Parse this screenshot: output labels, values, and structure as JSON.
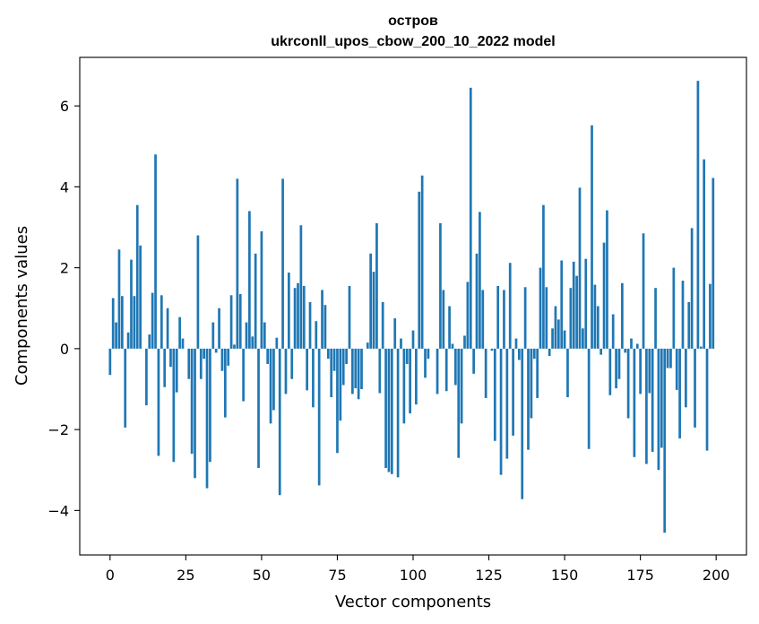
{
  "chart_data": {
    "type": "bar",
    "title": "остров",
    "subtitle": "ukrconll_upos_cbow_200_10_2022 model",
    "xlabel": "Vector components",
    "ylabel": "Components values",
    "xlim": [
      -10,
      210
    ],
    "ylim": [
      -5.1,
      7.2
    ],
    "xticks": [
      0,
      25,
      50,
      75,
      100,
      125,
      150,
      175,
      200
    ],
    "yticks": [
      -4,
      -2,
      0,
      2,
      4,
      6
    ],
    "ytick_labels": [
      "−4",
      "−2",
      "0",
      "2",
      "4",
      "6"
    ],
    "bar_color": "#1f77b4",
    "grid": false,
    "values": [
      -0.65,
      1.25,
      0.65,
      2.45,
      1.3,
      -1.95,
      0.4,
      2.2,
      1.3,
      3.55,
      2.55,
      0.0,
      -1.4,
      0.35,
      1.38,
      4.8,
      -2.65,
      1.32,
      -0.95,
      1.0,
      -0.45,
      -2.8,
      -1.08,
      0.78,
      0.25,
      0.0,
      -0.75,
      -2.6,
      -3.2,
      2.8,
      -0.75,
      -0.25,
      -3.45,
      -2.8,
      0.65,
      -0.1,
      1.0,
      -0.55,
      -1.7,
      -0.42,
      1.32,
      0.1,
      4.2,
      1.35,
      -1.3,
      0.65,
      3.4,
      0.3,
      2.35,
      -2.95,
      2.9,
      0.65,
      -0.38,
      -1.85,
      -1.52,
      0.27,
      -3.62,
      4.2,
      -1.12,
      1.88,
      -0.75,
      1.5,
      1.62,
      3.05,
      1.55,
      -1.03,
      1.15,
      -1.45,
      0.68,
      -3.38,
      1.45,
      1.08,
      -0.25,
      -1.2,
      -0.55,
      -2.58,
      -1.78,
      -0.9,
      -0.38,
      1.55,
      -1.12,
      -0.98,
      -1.25,
      -1.0,
      0.0,
      0.15,
      2.35,
      1.9,
      3.1,
      -1.1,
      1.15,
      -2.95,
      -3.05,
      -3.1,
      0.75,
      -3.18,
      0.25,
      -1.85,
      -0.38,
      -1.6,
      0.45,
      -1.38,
      3.88,
      4.28,
      -0.72,
      -0.25,
      0.0,
      0.0,
      -1.12,
      3.1,
      1.45,
      -1.05,
      1.05,
      0.12,
      -0.9,
      -2.7,
      -1.85,
      0.32,
      1.65,
      6.45,
      -0.62,
      2.35,
      3.38,
      1.45,
      -1.22,
      0.0,
      -0.05,
      -2.28,
      1.55,
      -3.12,
      1.45,
      -2.72,
      2.12,
      -2.15,
      0.25,
      -0.28,
      -3.72,
      1.52,
      -2.5,
      -1.72,
      -0.25,
      -1.22,
      2.0,
      3.55,
      1.52,
      -0.18,
      0.5,
      1.05,
      0.72,
      2.18,
      0.45,
      -1.2,
      1.5,
      2.15,
      1.8,
      3.98,
      0.5,
      2.22,
      -2.48,
      5.52,
      1.58,
      1.05,
      -0.15,
      2.62,
      3.42,
      -1.15,
      0.85,
      -0.98,
      -0.75,
      1.62,
      -0.1,
      -1.72,
      0.25,
      -2.68,
      0.12,
      -1.12,
      2.85,
      -2.85,
      -1.1,
      -2.55,
      1.5,
      -3.0,
      -2.45,
      -4.55,
      -0.48,
      -0.48,
      2.0,
      -1.02,
      -2.22,
      1.68,
      -1.45,
      1.15,
      2.98,
      -1.95,
      6.62,
      0.05,
      4.68,
      -2.52,
      1.6,
      4.22
    ]
  }
}
